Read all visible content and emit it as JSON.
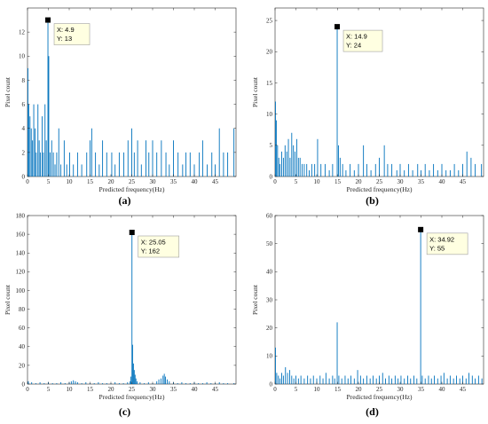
{
  "chart_data": [
    {
      "type": "bar",
      "panel_label": "(a)",
      "xlabel": "Predicted frequency(Hz)",
      "ylabel": "Pixel count",
      "xlim": [
        0,
        50
      ],
      "ylim": [
        0,
        14
      ],
      "xticks": [
        "0",
        "5",
        "10",
        "15",
        "20",
        "25",
        "30",
        "35",
        "40",
        "45"
      ],
      "yticks": [
        "0",
        "2",
        "4",
        "6",
        "8",
        "10",
        "12"
      ],
      "color": "#0072bd",
      "peak": {
        "x": 4.9,
        "y": 13,
        "label_x": "X: 4.9",
        "label_y": "Y: 13"
      },
      "bars": [
        [
          0.1,
          9
        ],
        [
          0.3,
          6
        ],
        [
          0.6,
          5
        ],
        [
          0.9,
          4
        ],
        [
          1.2,
          3
        ],
        [
          1.5,
          6
        ],
        [
          1.8,
          4
        ],
        [
          2.1,
          2
        ],
        [
          2.5,
          6
        ],
        [
          2.8,
          3
        ],
        [
          3.1,
          2
        ],
        [
          3.5,
          5
        ],
        [
          3.8,
          2
        ],
        [
          4.2,
          6
        ],
        [
          4.5,
          3
        ],
        [
          4.9,
          13
        ],
        [
          5.1,
          10
        ],
        [
          5.4,
          2
        ],
        [
          5.8,
          3
        ],
        [
          6.2,
          2
        ],
        [
          6.6,
          1
        ],
        [
          7.0,
          2
        ],
        [
          7.5,
          4
        ],
        [
          8.0,
          1
        ],
        [
          8.8,
          3
        ],
        [
          9.4,
          1
        ],
        [
          10.1,
          2
        ],
        [
          11.0,
          1
        ],
        [
          12.0,
          2
        ],
        [
          13.0,
          1
        ],
        [
          14.2,
          2
        ],
        [
          15.0,
          3
        ],
        [
          15.4,
          4
        ],
        [
          16.3,
          2
        ],
        [
          17.2,
          1
        ],
        [
          18.0,
          3
        ],
        [
          19.0,
          2
        ],
        [
          20.2,
          2
        ],
        [
          21.0,
          1
        ],
        [
          22.0,
          2
        ],
        [
          23.1,
          2
        ],
        [
          24.1,
          3
        ],
        [
          25.0,
          4
        ],
        [
          25.6,
          2
        ],
        [
          26.4,
          3
        ],
        [
          27.3,
          1
        ],
        [
          28.4,
          3
        ],
        [
          29.1,
          2
        ],
        [
          30.0,
          3
        ],
        [
          31.0,
          2
        ],
        [
          32.1,
          3
        ],
        [
          33.2,
          2
        ],
        [
          34.0,
          1
        ],
        [
          35.0,
          3
        ],
        [
          36.1,
          2
        ],
        [
          37.2,
          1
        ],
        [
          38.0,
          2
        ],
        [
          39.0,
          2
        ],
        [
          40.0,
          1
        ],
        [
          41.2,
          2
        ],
        [
          42.0,
          3
        ],
        [
          43.1,
          1
        ],
        [
          44.2,
          2
        ],
        [
          45.0,
          1
        ],
        [
          46.0,
          4
        ],
        [
          47.0,
          2
        ],
        [
          48.0,
          2
        ],
        [
          49.5,
          4
        ]
      ]
    },
    {
      "type": "bar",
      "panel_label": "(b)",
      "xlabel": "Predicted frequency(Hz)",
      "ylabel": "Pixel count",
      "xlim": [
        0,
        50
      ],
      "ylim": [
        0,
        27
      ],
      "xticks": [
        "0",
        "5",
        "10",
        "15",
        "20",
        "25",
        "30",
        "35",
        "40",
        "45"
      ],
      "yticks": [
        "0",
        "5",
        "10",
        "15",
        "20",
        "25"
      ],
      "color": "#0072bd",
      "peak": {
        "x": 14.9,
        "y": 24,
        "label_x": "X: 14.9",
        "label_y": "Y: 24"
      },
      "bars": [
        [
          0.1,
          12
        ],
        [
          0.3,
          9
        ],
        [
          0.6,
          5
        ],
        [
          0.9,
          3
        ],
        [
          1.2,
          2
        ],
        [
          1.6,
          4
        ],
        [
          2.0,
          3
        ],
        [
          2.4,
          5
        ],
        [
          2.8,
          4
        ],
        [
          3.2,
          6
        ],
        [
          3.6,
          3
        ],
        [
          4.0,
          7
        ],
        [
          4.4,
          5
        ],
        [
          4.8,
          4
        ],
        [
          5.2,
          6
        ],
        [
          5.6,
          3
        ],
        [
          6.0,
          3
        ],
        [
          6.5,
          2
        ],
        [
          7.0,
          2
        ],
        [
          7.6,
          2
        ],
        [
          8.2,
          1
        ],
        [
          8.8,
          2
        ],
        [
          9.5,
          2
        ],
        [
          10.2,
          6
        ],
        [
          11.0,
          2
        ],
        [
          12.0,
          2
        ],
        [
          13.0,
          1
        ],
        [
          13.8,
          2
        ],
        [
          14.9,
          24
        ],
        [
          15.2,
          5
        ],
        [
          15.6,
          3
        ],
        [
          16.2,
          2
        ],
        [
          17.0,
          1
        ],
        [
          18.0,
          2
        ],
        [
          19.0,
          1
        ],
        [
          20.0,
          2
        ],
        [
          21.2,
          5
        ],
        [
          22.0,
          2
        ],
        [
          23.0,
          1
        ],
        [
          24.1,
          2
        ],
        [
          25.0,
          3
        ],
        [
          26.2,
          5
        ],
        [
          27.0,
          2
        ],
        [
          28.0,
          2
        ],
        [
          29.2,
          1
        ],
        [
          30.0,
          2
        ],
        [
          31.0,
          1
        ],
        [
          32.0,
          2
        ],
        [
          33.0,
          1
        ],
        [
          34.2,
          2
        ],
        [
          35.0,
          1
        ],
        [
          36.0,
          2
        ],
        [
          37.0,
          1
        ],
        [
          38.0,
          2
        ],
        [
          39.0,
          1
        ],
        [
          40.0,
          2
        ],
        [
          41.0,
          1
        ],
        [
          42.0,
          1
        ],
        [
          43.0,
          2
        ],
        [
          44.0,
          1
        ],
        [
          45.0,
          2
        ],
        [
          46.0,
          4
        ],
        [
          47.0,
          3
        ],
        [
          48.0,
          2
        ],
        [
          49.5,
          2
        ]
      ]
    },
    {
      "type": "bar",
      "panel_label": "(c)",
      "xlabel": "Predicted frequency(Hz)",
      "ylabel": "Pixel count",
      "xlim": [
        0,
        50
      ],
      "ylim": [
        0,
        180
      ],
      "xticks": [
        "0",
        "5",
        "10",
        "15",
        "20",
        "25",
        "30",
        "35",
        "40",
        "45"
      ],
      "yticks": [
        "0",
        "20",
        "40",
        "60",
        "80",
        "100",
        "120",
        "140",
        "160",
        "180"
      ],
      "color": "#0072bd",
      "peak": {
        "x": 25.05,
        "y": 162,
        "label_x": "X: 25.05",
        "label_y": "Y: 162"
      },
      "bars": [
        [
          0.2,
          3
        ],
        [
          1.0,
          2
        ],
        [
          2.0,
          1
        ],
        [
          3.0,
          2
        ],
        [
          4.0,
          1
        ],
        [
          5.0,
          2
        ],
        [
          6.0,
          1
        ],
        [
          7.0,
          1
        ],
        [
          8.0,
          2
        ],
        [
          9.0,
          1
        ],
        [
          10.0,
          2
        ],
        [
          10.5,
          3
        ],
        [
          11.0,
          4
        ],
        [
          11.5,
          3
        ],
        [
          12.0,
          2
        ],
        [
          13.0,
          1
        ],
        [
          14.0,
          2
        ],
        [
          15.0,
          1
        ],
        [
          16.0,
          1
        ],
        [
          17.0,
          2
        ],
        [
          18.0,
          1
        ],
        [
          19.0,
          1
        ],
        [
          20.0,
          1
        ],
        [
          21.0,
          2
        ],
        [
          22.0,
          1
        ],
        [
          23.0,
          1
        ],
        [
          24.0,
          2
        ],
        [
          24.6,
          3
        ],
        [
          24.8,
          8
        ],
        [
          25.05,
          162
        ],
        [
          25.2,
          42
        ],
        [
          25.4,
          22
        ],
        [
          25.6,
          15
        ],
        [
          25.8,
          10
        ],
        [
          26.0,
          6
        ],
        [
          26.3,
          3
        ],
        [
          27.0,
          2
        ],
        [
          28.0,
          1
        ],
        [
          29.0,
          2
        ],
        [
          30.0,
          1
        ],
        [
          31.0,
          3
        ],
        [
          31.5,
          5
        ],
        [
          32.0,
          6
        ],
        [
          32.5,
          9
        ],
        [
          32.8,
          11
        ],
        [
          33.1,
          8
        ],
        [
          33.5,
          5
        ],
        [
          34.0,
          3
        ],
        [
          35.0,
          2
        ],
        [
          36.0,
          1
        ],
        [
          37.0,
          2
        ],
        [
          38.0,
          1
        ],
        [
          39.0,
          1
        ],
        [
          40.0,
          2
        ],
        [
          41.0,
          1
        ],
        [
          42.0,
          1
        ],
        [
          43.0,
          2
        ],
        [
          44.0,
          1
        ],
        [
          45.0,
          1
        ],
        [
          46.0,
          2
        ],
        [
          47.0,
          1
        ],
        [
          48.0,
          1
        ],
        [
          49.5,
          1
        ]
      ]
    },
    {
      "type": "bar",
      "panel_label": "(d)",
      "xlabel": "Predicted frequency(Hz)",
      "ylabel": "Pixel count",
      "xlim": [
        0,
        50
      ],
      "ylim": [
        0,
        60
      ],
      "xticks": [
        "0",
        "5",
        "10",
        "15",
        "20",
        "25",
        "30",
        "35",
        "40",
        "45"
      ],
      "yticks": [
        "0",
        "10",
        "20",
        "30",
        "40",
        "50",
        "60"
      ],
      "color": "#0072bd",
      "peak": {
        "x": 34.92,
        "y": 55,
        "label_x": "X: 34.92",
        "label_y": "Y: 55"
      },
      "bars": [
        [
          0.1,
          13
        ],
        [
          0.4,
          4
        ],
        [
          0.8,
          3
        ],
        [
          1.2,
          2
        ],
        [
          1.6,
          4
        ],
        [
          2.0,
          3
        ],
        [
          2.5,
          6
        ],
        [
          3.0,
          4
        ],
        [
          3.5,
          5
        ],
        [
          4.0,
          3
        ],
        [
          4.5,
          2
        ],
        [
          5.0,
          3
        ],
        [
          5.6,
          2
        ],
        [
          6.2,
          3
        ],
        [
          7.0,
          2
        ],
        [
          7.8,
          3
        ],
        [
          8.5,
          2
        ],
        [
          9.2,
          3
        ],
        [
          10.0,
          2
        ],
        [
          10.8,
          3
        ],
        [
          11.5,
          2
        ],
        [
          12.2,
          4
        ],
        [
          13.0,
          2
        ],
        [
          13.8,
          3
        ],
        [
          14.3,
          2
        ],
        [
          14.9,
          22
        ],
        [
          15.3,
          3
        ],
        [
          16.0,
          2
        ],
        [
          16.8,
          3
        ],
        [
          17.5,
          2
        ],
        [
          18.2,
          3
        ],
        [
          19.0,
          2
        ],
        [
          19.8,
          5
        ],
        [
          20.5,
          3
        ],
        [
          21.2,
          2
        ],
        [
          22.0,
          3
        ],
        [
          22.8,
          2
        ],
        [
          23.5,
          3
        ],
        [
          24.3,
          2
        ],
        [
          25.0,
          3
        ],
        [
          25.8,
          4
        ],
        [
          26.5,
          2
        ],
        [
          27.3,
          3
        ],
        [
          28.0,
          2
        ],
        [
          28.8,
          3
        ],
        [
          29.5,
          2
        ],
        [
          30.2,
          3
        ],
        [
          31.0,
          2
        ],
        [
          31.8,
          3
        ],
        [
          32.5,
          2
        ],
        [
          33.3,
          3
        ],
        [
          34.0,
          2
        ],
        [
          34.92,
          55
        ],
        [
          35.3,
          3
        ],
        [
          36.0,
          2
        ],
        [
          36.8,
          3
        ],
        [
          37.5,
          2
        ],
        [
          38.2,
          3
        ],
        [
          39.0,
          2
        ],
        [
          39.8,
          3
        ],
        [
          40.5,
          4
        ],
        [
          41.3,
          2
        ],
        [
          42.0,
          3
        ],
        [
          42.8,
          2
        ],
        [
          43.5,
          3
        ],
        [
          44.3,
          2
        ],
        [
          45.0,
          3
        ],
        [
          45.8,
          2
        ],
        [
          46.5,
          4
        ],
        [
          47.3,
          3
        ],
        [
          48.0,
          2
        ],
        [
          48.8,
          3
        ],
        [
          49.6,
          2
        ]
      ]
    }
  ]
}
